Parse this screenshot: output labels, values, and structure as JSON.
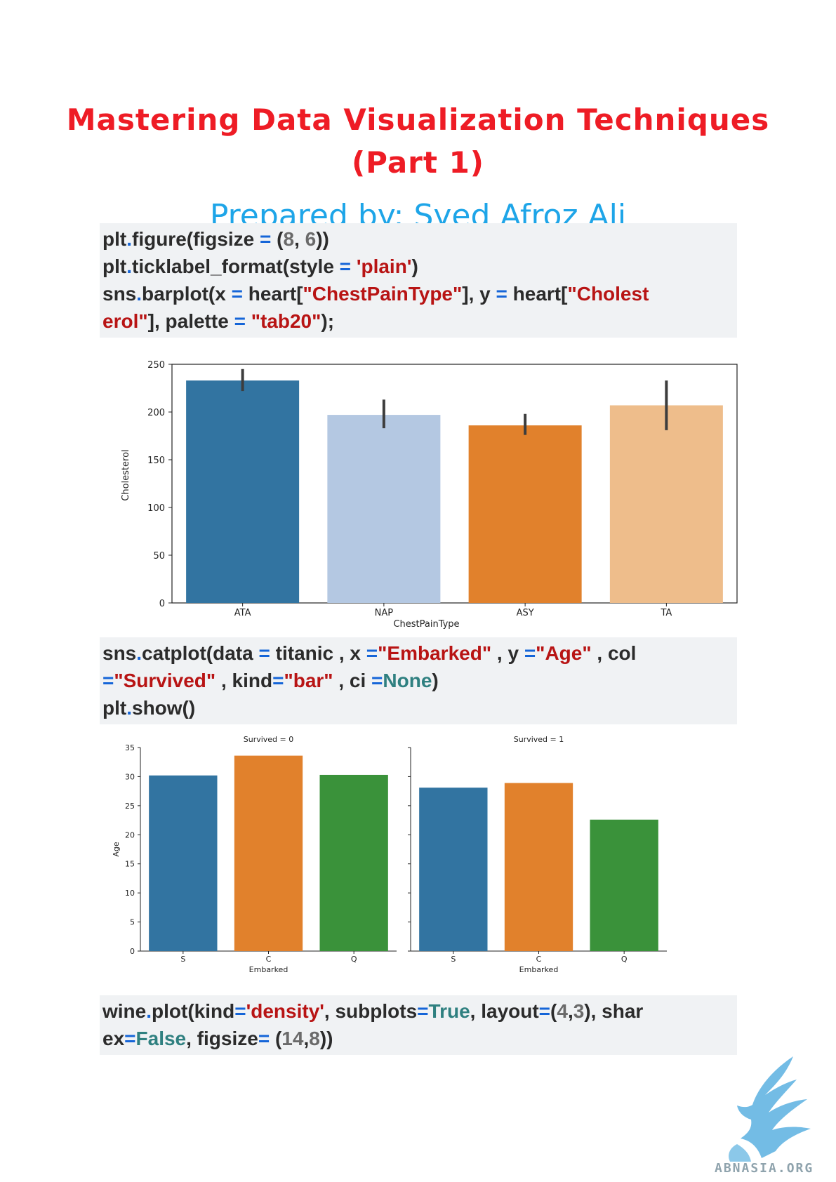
{
  "header": {
    "title_line1": "Mastering Data Visualization Techniques",
    "title_line2": "(Part 1)",
    "subtitle": "Prepared by: Syed Afroz Ali"
  },
  "code_blocks": [
    {
      "lines": [
        [
          [
            "t",
            "plt"
          ],
          [
            "o",
            "."
          ],
          [
            "t",
            "figure(figsize "
          ],
          [
            "o",
            "="
          ],
          [
            "t",
            " ("
          ],
          [
            "n",
            "8"
          ],
          [
            "t",
            ", "
          ],
          [
            "n",
            "6"
          ],
          [
            "t",
            "))"
          ]
        ],
        [
          [
            "t",
            "plt"
          ],
          [
            "o",
            "."
          ],
          [
            "t",
            "ticklabel_format(style "
          ],
          [
            "o",
            "="
          ],
          [
            "t",
            " "
          ],
          [
            "s",
            "'plain'"
          ],
          [
            "t",
            ")"
          ]
        ],
        [
          [
            "t",
            "sns"
          ],
          [
            "o",
            "."
          ],
          [
            "t",
            "barplot(x "
          ],
          [
            "o",
            "="
          ],
          [
            "t",
            " heart["
          ],
          [
            "s",
            "\"ChestPainType\""
          ],
          [
            "t",
            "], y "
          ],
          [
            "o",
            "="
          ],
          [
            "t",
            " heart["
          ],
          [
            "s",
            "\"Cholest"
          ]
        ],
        [
          [
            "s",
            "erol\""
          ],
          [
            "t",
            "], palette "
          ],
          [
            "o",
            "="
          ],
          [
            "t",
            " "
          ],
          [
            "s",
            "\"tab20\""
          ],
          [
            "t",
            ");"
          ]
        ]
      ]
    },
    {
      "lines": [
        [
          [
            "t",
            "sns"
          ],
          [
            "o",
            "."
          ],
          [
            "t",
            "catplot(data "
          ],
          [
            "o",
            "="
          ],
          [
            "t",
            " titanic , x "
          ],
          [
            "o",
            "="
          ],
          [
            "s",
            "\"Embarked\""
          ],
          [
            "t",
            " , y "
          ],
          [
            "o",
            "="
          ],
          [
            "s",
            "\"Age\""
          ],
          [
            "t",
            " , col"
          ]
        ],
        [
          [
            "o",
            "="
          ],
          [
            "s",
            "\"Survived\""
          ],
          [
            "t",
            " , kind"
          ],
          [
            "o",
            "="
          ],
          [
            "s",
            "\"bar\""
          ],
          [
            "t",
            " , ci "
          ],
          [
            "o",
            "="
          ],
          [
            "k",
            "None"
          ],
          [
            "t",
            ")"
          ]
        ],
        [
          [
            "t",
            "plt"
          ],
          [
            "o",
            "."
          ],
          [
            "t",
            "show()"
          ]
        ]
      ]
    },
    {
      "lines": [
        [
          [
            "t",
            "wine"
          ],
          [
            "o",
            "."
          ],
          [
            "t",
            "plot(kind"
          ],
          [
            "o",
            "="
          ],
          [
            "s",
            "'density'"
          ],
          [
            "t",
            ", subplots"
          ],
          [
            "o",
            "="
          ],
          [
            "k",
            "True"
          ],
          [
            "t",
            ", layout"
          ],
          [
            "o",
            "="
          ],
          [
            "t",
            "("
          ],
          [
            "n",
            "4"
          ],
          [
            "t",
            ","
          ],
          [
            "n",
            "3"
          ],
          [
            "t",
            "), shar"
          ]
        ],
        [
          [
            "t",
            "ex"
          ],
          [
            "o",
            "="
          ],
          [
            "k",
            "False"
          ],
          [
            "t",
            ", figsize"
          ],
          [
            "o",
            "="
          ],
          [
            "t",
            " ("
          ],
          [
            "n",
            "14"
          ],
          [
            "t",
            ","
          ],
          [
            "n",
            "8"
          ],
          [
            "t",
            "))"
          ]
        ]
      ]
    }
  ],
  "chart_data": [
    {
      "type": "bar",
      "categories": [
        "ATA",
        "NAP",
        "ASY",
        "TA"
      ],
      "values": [
        233,
        197,
        186,
        207
      ],
      "error_bars": [
        [
          222,
          245
        ],
        [
          183,
          213
        ],
        [
          176,
          198
        ],
        [
          181,
          233
        ]
      ],
      "colors": [
        "#3274a1",
        "#b4c8e2",
        "#e1812c",
        "#eebd8b"
      ],
      "xlabel": "ChestPainType",
      "ylabel": "Cholesterol",
      "ylim": [
        0,
        250
      ],
      "yticks": [
        0,
        50,
        100,
        150,
        200,
        250
      ]
    },
    {
      "type": "bar",
      "facets": [
        {
          "title": "Survived = 0",
          "categories": [
            "S",
            "C",
            "Q"
          ],
          "values": [
            30.2,
            33.6,
            30.3
          ]
        },
        {
          "title": "Survived = 1",
          "categories": [
            "S",
            "C",
            "Q"
          ],
          "values": [
            28.1,
            28.9,
            22.6
          ]
        }
      ],
      "colors": [
        "#3274a1",
        "#e1812c",
        "#3a923a"
      ],
      "xlabel": "Embarked",
      "ylabel": "Age",
      "ylim": [
        0,
        35
      ],
      "yticks": [
        0,
        5,
        10,
        15,
        20,
        25,
        30,
        35
      ]
    }
  ],
  "watermark": {
    "text": "ABNASIA.ORG",
    "icon": "griffin-logo-icon",
    "color": "#5ab0e0"
  }
}
